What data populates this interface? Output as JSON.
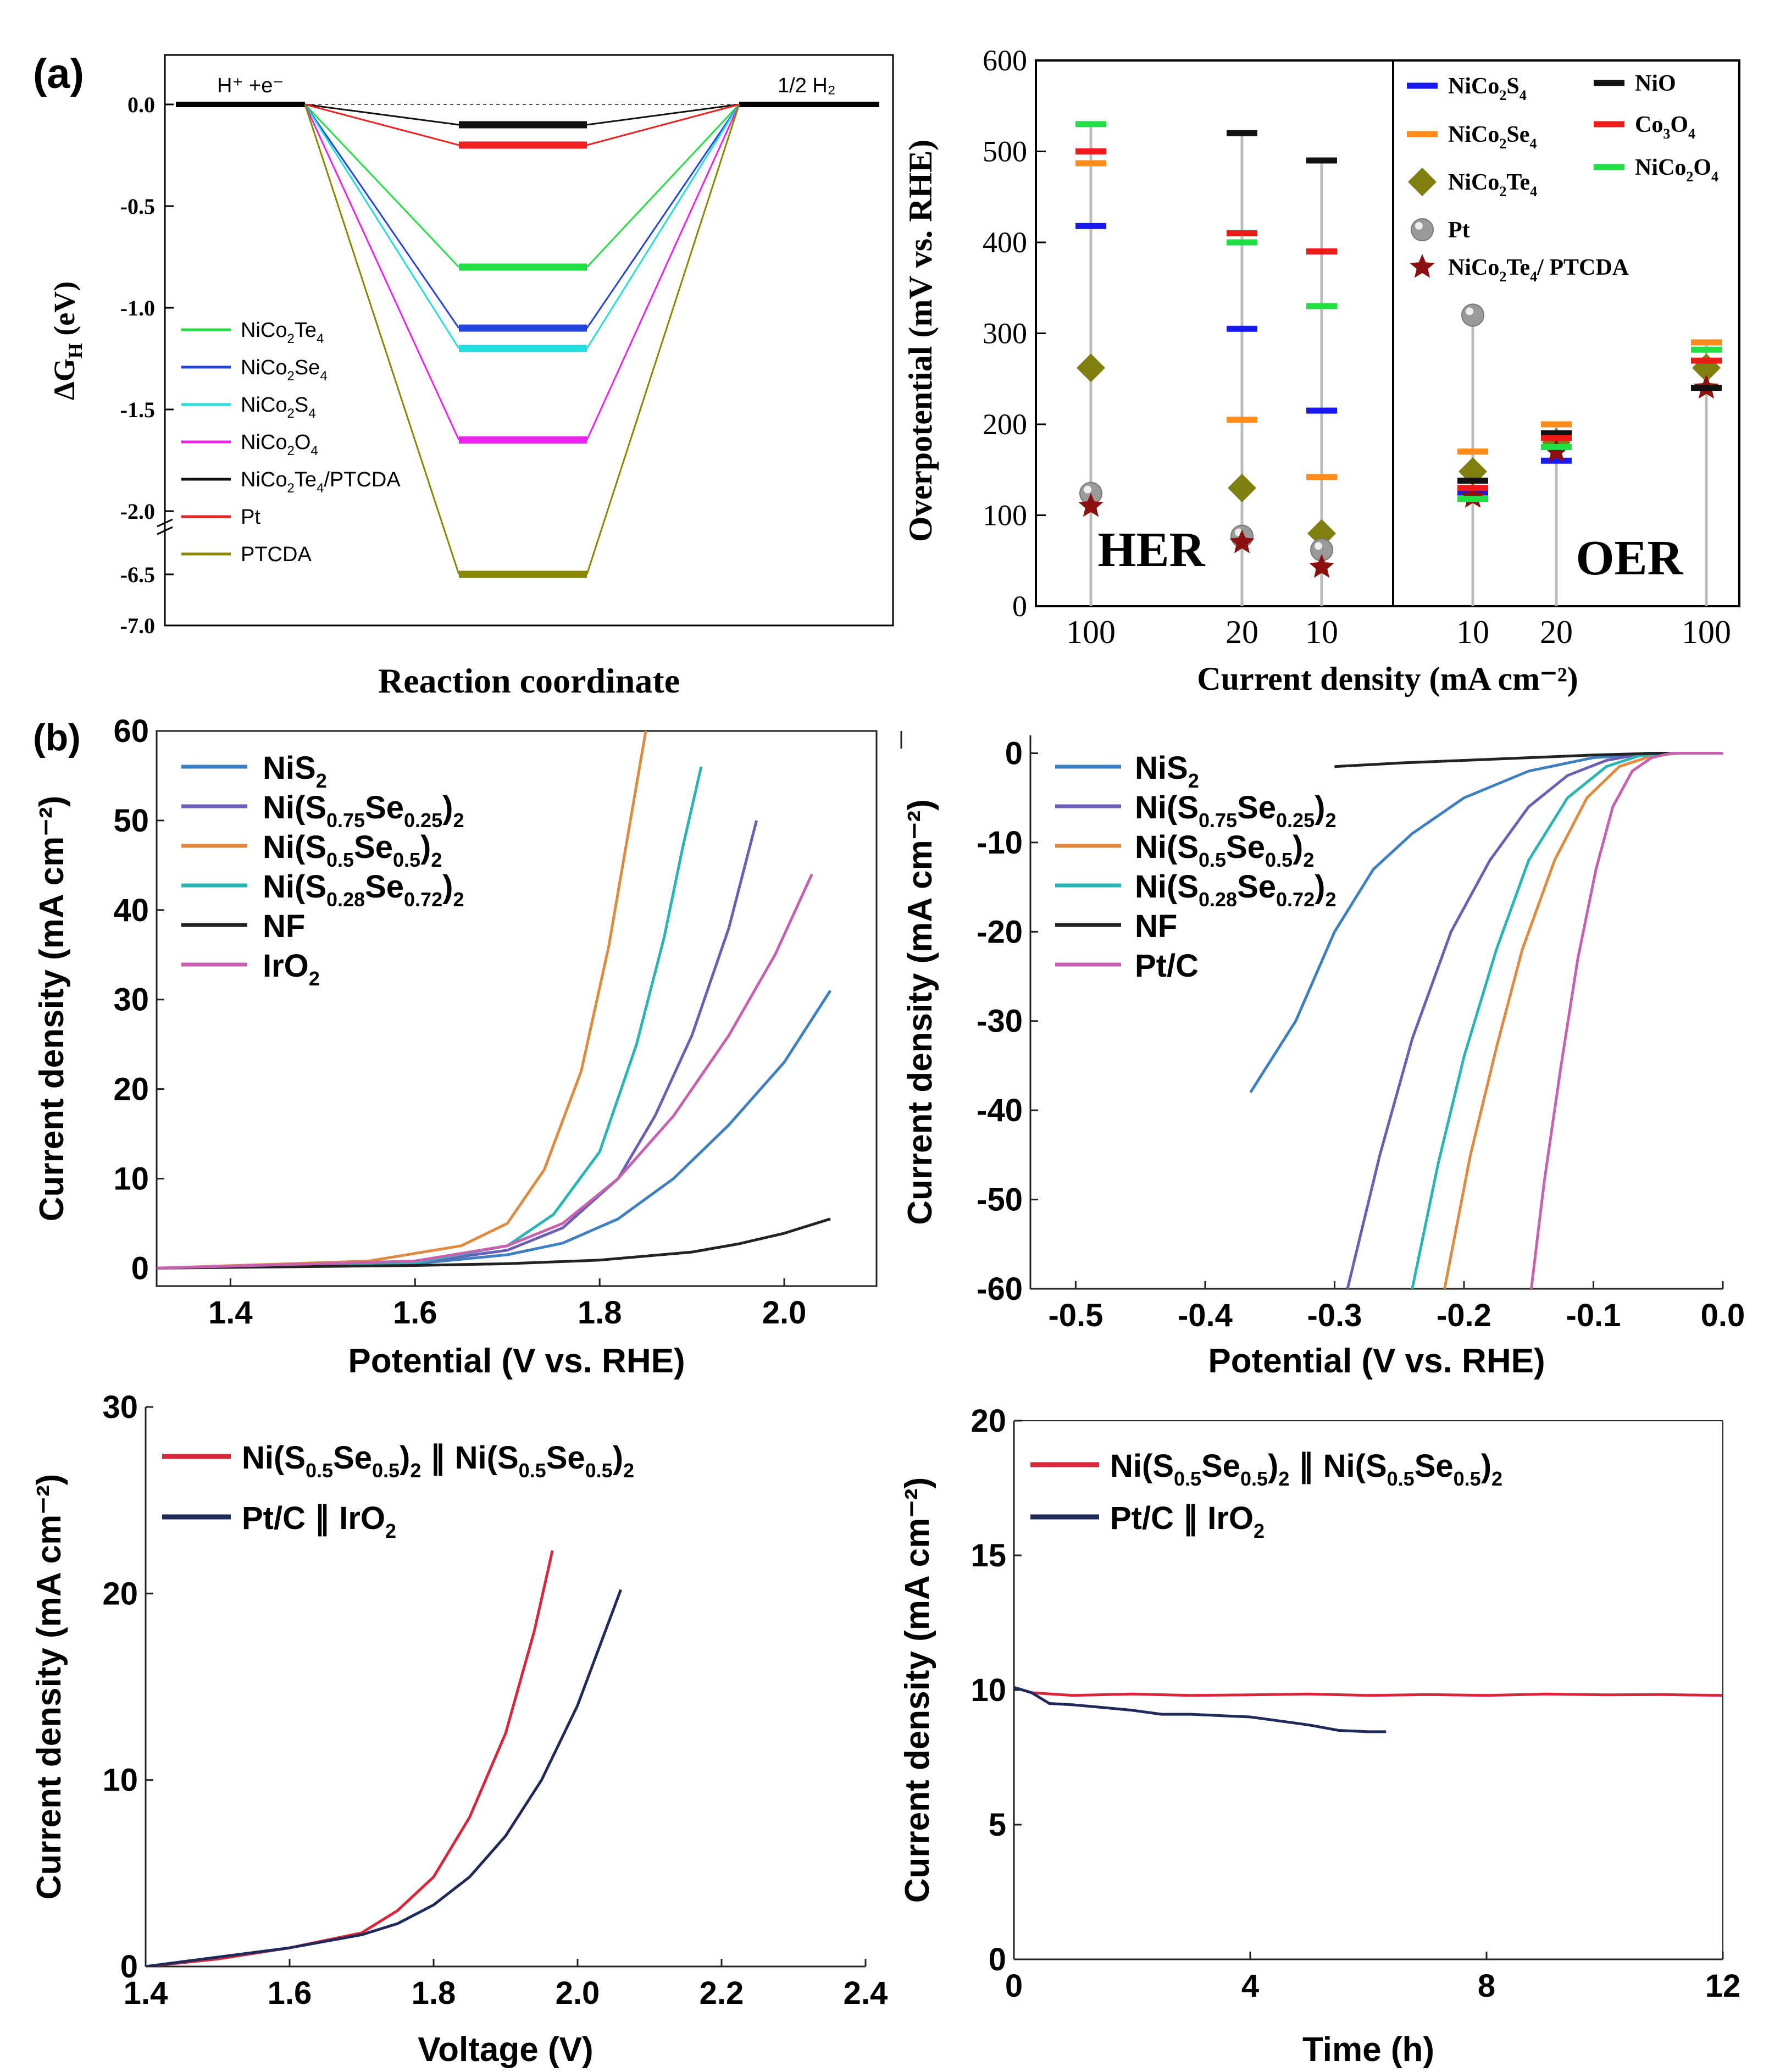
{
  "figure": {
    "panel_a_label": "(a)",
    "panel_b_label": "(b)"
  },
  "chart_data": [
    {
      "id": "energy",
      "type": "line",
      "title": "",
      "xlabel": "Reaction coordinate",
      "ylabel": "ΔG",
      "ylabel_sub": "H",
      "ylabel_unit": "(eV)",
      "start_label": "H⁺ +e⁻",
      "end_label": "1/2 H₂",
      "yticks": [
        "0.0",
        "-0.5",
        "-1.0",
        "-1.5",
        "-2.0",
        "-6.5",
        "-7.0"
      ],
      "series": [
        {
          "name": "NiCo₂Te₄",
          "dg": -0.8,
          "color": "#22dd44"
        },
        {
          "name": "NiCo₂Se₄",
          "dg": -1.1,
          "color": "#2244dd"
        },
        {
          "name": "NiCo₂S₄",
          "dg": -1.2,
          "color": "#22dddd"
        },
        {
          "name": "NiCo₂O₄",
          "dg": -1.65,
          "color": "#ee22ee"
        },
        {
          "name": "NiCo₂Te₄/PTCDA",
          "dg": -0.1,
          "color": "#111111"
        },
        {
          "name": "Pt",
          "dg": -0.2,
          "color": "#ee2222"
        },
        {
          "name": "PTCDA",
          "dg": -6.5,
          "color": "#888800"
        }
      ]
    },
    {
      "id": "overpotential",
      "type": "scatter",
      "ylabel": "Overpotential (mV vs. RHE)",
      "xlabel": "Current density (mA cm⁻²)",
      "ylim": [
        0,
        600
      ],
      "yticks": [
        "0",
        "100",
        "200",
        "300",
        "400",
        "500",
        "600"
      ],
      "her_label": "HER",
      "oer_label": "OER",
      "groups": [
        {
          "label": "100",
          "side": "HER"
        },
        {
          "label": "20",
          "side": "HER"
        },
        {
          "label": "10",
          "side": "HER"
        },
        {
          "label": "10",
          "side": "OER"
        },
        {
          "label": "20",
          "side": "OER"
        },
        {
          "label": "100",
          "side": "OER"
        }
      ],
      "series": [
        {
          "name": "NiCo₂S₄",
          "marker": "dash",
          "color": "#1a1aee",
          "values": [
            418,
            305,
            215,
            125,
            160,
            null
          ]
        },
        {
          "name": "NiCo₂Se₄",
          "marker": "dash",
          "color": "#ff8c1a",
          "values": [
            487,
            205,
            142,
            170,
            200,
            290
          ]
        },
        {
          "name": "NiCo₂Te₄",
          "marker": "diamond",
          "color": "#7f7f10",
          "values": [
            262,
            130,
            80,
            148,
            180,
            262
          ]
        },
        {
          "name": "Pt",
          "marker": "sphere",
          "color": "#999999",
          "values": [
            124,
            77,
            62,
            320,
            null,
            null
          ]
        },
        {
          "name": "NiCo₂Te₄/ PTCDA",
          "marker": "star",
          "color": "#8b1010",
          "values": [
            110,
            70,
            43,
            120,
            170,
            240
          ]
        },
        {
          "name": "NiO",
          "marker": "dash",
          "color": "#111111",
          "values": [
            null,
            520,
            490,
            138,
            190,
            240
          ]
        },
        {
          "name": "Co₃O₄",
          "marker": "dash",
          "color": "#ee1a1a",
          "values": [
            500,
            410,
            390,
            130,
            185,
            270
          ]
        },
        {
          "name": "NiCo₂O₄",
          "marker": "dash",
          "color": "#22dd44",
          "values": [
            530,
            400,
            330,
            118,
            175,
            282
          ]
        }
      ]
    },
    {
      "id": "oer_lsv",
      "type": "line",
      "xlabel": "Potential (V vs. RHE)",
      "ylabel": "Current density (mA cm⁻²)",
      "xlim": [
        1.32,
        2.1
      ],
      "ylim": [
        -2,
        60
      ],
      "xticks": [
        "1.4",
        "1.6",
        "1.8",
        "2.0"
      ],
      "yticks": [
        "0",
        "10",
        "20",
        "30",
        "40",
        "50",
        "60"
      ],
      "series": [
        {
          "name": "NiS₂",
          "color": "#3d7fc1",
          "x": [
            1.32,
            1.6,
            1.7,
            1.76,
            1.82,
            1.88,
            1.94,
            2.0,
            2.05
          ],
          "y": [
            0,
            0.5,
            1.5,
            2.8,
            5.5,
            10,
            16,
            23,
            31
          ]
        },
        {
          "name": "Ni(S0.75Se0.25)2",
          "name_main": "Ni(S",
          "sub1": "0.75",
          "mid": "Se",
          "sub2": "0.25",
          "tail": ")",
          "sub3": "2",
          "color": "#6a5fb5",
          "x": [
            1.32,
            1.6,
            1.7,
            1.76,
            1.82,
            1.86,
            1.9,
            1.94,
            1.97
          ],
          "y": [
            0,
            0.6,
            2,
            4.5,
            10,
            17,
            26,
            38,
            50
          ]
        },
        {
          "name": "Ni(S0.5Se0.5)2",
          "name_main": "Ni(S",
          "sub1": "0.5",
          "mid": "Se",
          "sub2": "0.5",
          "tail": ")",
          "sub3": "2",
          "color": "#e08a40",
          "x": [
            1.32,
            1.55,
            1.65,
            1.7,
            1.74,
            1.78,
            1.81,
            1.83,
            1.85
          ],
          "y": [
            0,
            0.8,
            2.5,
            5,
            11,
            22,
            36,
            48,
            60
          ]
        },
        {
          "name": "Ni(S0.28Se0.72)2",
          "name_main": "Ni(S",
          "sub1": "0.28",
          "mid": "Se",
          "sub2": "0.72",
          "tail": ")",
          "sub3": "2",
          "color": "#2ab5b5",
          "x": [
            1.32,
            1.6,
            1.7,
            1.75,
            1.8,
            1.84,
            1.87,
            1.89,
            1.91
          ],
          "y": [
            0,
            0.6,
            2.5,
            6,
            13,
            25,
            37,
            47,
            56
          ]
        },
        {
          "name": "NF",
          "color": "#222222",
          "x": [
            1.32,
            1.6,
            1.7,
            1.8,
            1.9,
            1.95,
            2.0,
            2.05
          ],
          "y": [
            0,
            0.3,
            0.5,
            0.9,
            1.8,
            2.7,
            3.9,
            5.5
          ]
        },
        {
          "name": "IrO₂",
          "color": "#c860b0",
          "x": [
            1.32,
            1.6,
            1.7,
            1.76,
            1.82,
            1.88,
            1.94,
            1.99,
            2.03
          ],
          "y": [
            0,
            0.8,
            2.5,
            5,
            10,
            17,
            26,
            35,
            44
          ]
        }
      ]
    },
    {
      "id": "her_lsv",
      "type": "line",
      "xlabel": "Potential (V vs. RHE)",
      "ylabel": "Current density (mA cm⁻²)",
      "xlim": [
        -0.535,
        0.0
      ],
      "ylim": [
        -60,
        2
      ],
      "xticks": [
        "-0.5",
        "-0.4",
        "-0.3",
        "-0.2",
        "-0.1",
        "0.0"
      ],
      "yticks": [
        "0",
        "-10",
        "-20",
        "-30",
        "-40",
        "-50",
        "-60"
      ],
      "series": [
        {
          "name": "NiS₂",
          "color": "#3d7fc1",
          "x": [
            -0.365,
            -0.33,
            -0.3,
            -0.27,
            -0.24,
            -0.2,
            -0.15,
            -0.1,
            -0.05,
            0.0
          ],
          "y": [
            -38,
            -30,
            -20,
            -13,
            -9,
            -5,
            -2,
            -0.5,
            0,
            0
          ]
        },
        {
          "name": "Ni(S0.75Se0.25)2",
          "name_main": "Ni(S",
          "sub1": "0.75",
          "mid": "Se",
          "sub2": "0.25",
          "tail": ")",
          "sub3": "2",
          "color": "#6a5fb5",
          "x": [
            -0.29,
            -0.265,
            -0.24,
            -0.21,
            -0.18,
            -0.15,
            -0.12,
            -0.09,
            -0.06,
            0.0
          ],
          "y": [
            -60,
            -45,
            -32,
            -20,
            -12,
            -6,
            -2.5,
            -0.8,
            0,
            0
          ]
        },
        {
          "name": "Ni(S0.5Se0.5)2",
          "name_main": "Ni(S",
          "sub1": "0.5",
          "mid": "Se",
          "sub2": "0.5",
          "tail": ")",
          "sub3": "2",
          "color": "#e08a40",
          "x": [
            -0.215,
            -0.195,
            -0.175,
            -0.155,
            -0.13,
            -0.105,
            -0.08,
            -0.055,
            -0.035,
            0.0
          ],
          "y": [
            -60,
            -45,
            -33,
            -22,
            -12,
            -5,
            -1.5,
            -0.3,
            0,
            0
          ]
        },
        {
          "name": "Ni(S0.28Se0.72)2",
          "name_main": "Ni(S",
          "sub1": "0.28",
          "mid": "Se",
          "sub2": "0.72",
          "tail": ")",
          "sub3": "2",
          "color": "#2ab5b5",
          "x": [
            -0.24,
            -0.22,
            -0.2,
            -0.175,
            -0.15,
            -0.12,
            -0.09,
            -0.065,
            -0.04,
            0.0
          ],
          "y": [
            -60,
            -46,
            -34,
            -22,
            -12,
            -5,
            -1.5,
            -0.3,
            0,
            0
          ]
        },
        {
          "name": "NF",
          "color": "#222222",
          "x": [
            -0.3,
            -0.25,
            -0.2,
            -0.15,
            -0.1,
            -0.05,
            0.0
          ],
          "y": [
            -1.5,
            -1.1,
            -0.8,
            -0.5,
            -0.2,
            0,
            0
          ]
        },
        {
          "name": "Pt/C",
          "color": "#c860b0",
          "x": [
            -0.148,
            -0.138,
            -0.125,
            -0.112,
            -0.098,
            -0.085,
            -0.07,
            -0.055,
            -0.04,
            0.0
          ],
          "y": [
            -60,
            -48,
            -35,
            -23,
            -13,
            -6,
            -2,
            -0.5,
            0,
            0
          ]
        }
      ]
    },
    {
      "id": "overall_lsv",
      "type": "line",
      "xlabel": "Voltage (V)",
      "ylabel": "Current density (mA cm⁻²)",
      "xlim": [
        1.4,
        2.4
      ],
      "ylim": [
        0,
        30
      ],
      "xticks": [
        "1.4",
        "1.6",
        "1.8",
        "2.0",
        "2.2",
        "2.4"
      ],
      "yticks": [
        "0",
        "10",
        "20",
        "30"
      ],
      "series": [
        {
          "name": "Ni(S0.5Se0.5)2 ∥ Ni(S0.5Se0.5)2",
          "color": "#d8263a",
          "x": [
            1.4,
            1.5,
            1.6,
            1.7,
            1.75,
            1.8,
            1.85,
            1.9,
            1.94,
            1.965
          ],
          "y": [
            0,
            0.4,
            1.0,
            1.8,
            3.0,
            4.8,
            8.0,
            12.5,
            18,
            22.3
          ]
        },
        {
          "name": "Pt/C ∥ IrO₂",
          "color": "#1f2a5a",
          "x": [
            1.4,
            1.5,
            1.6,
            1.7,
            1.75,
            1.8,
            1.85,
            1.9,
            1.95,
            2.0,
            2.06
          ],
          "y": [
            0,
            0.5,
            1.0,
            1.7,
            2.3,
            3.3,
            4.8,
            7.0,
            10,
            14,
            20.2
          ]
        }
      ],
      "legend": [
        {
          "text": [
            "Ni(S",
            "0.5",
            "Se",
            "0.5",
            ")",
            "2",
            " ∥ Ni(S",
            "0.5",
            "Se",
            "0.5",
            ")",
            "2"
          ]
        },
        {
          "text": [
            "Pt/C ∥ IrO",
            "2"
          ]
        }
      ]
    },
    {
      "id": "stability",
      "type": "line",
      "xlabel": "Time (h)",
      "ylabel": "Current density (mA cm⁻²)",
      "xlim": [
        0,
        12
      ],
      "ylim": [
        0,
        20
      ],
      "xticks": [
        "0",
        "4",
        "8",
        "12"
      ],
      "yticks": [
        "0",
        "5",
        "10",
        "15",
        "20"
      ],
      "series": [
        {
          "name": "Ni(S0.5Se0.5)2 ∥ Ni(S0.5Se0.5)2",
          "color": "#d8263a",
          "x": [
            0,
            0.3,
            1,
            2,
            3,
            4,
            5,
            6,
            7,
            8,
            9,
            10,
            11,
            12
          ],
          "y": [
            10.1,
            9.9,
            9.8,
            9.85,
            9.8,
            9.82,
            9.85,
            9.8,
            9.83,
            9.8,
            9.85,
            9.82,
            9.83,
            9.8
          ]
        },
        {
          "name": "Pt/C ∥ IrO₂",
          "color": "#1f2a5a",
          "x": [
            0,
            0.3,
            0.6,
            1,
            1.5,
            2,
            2.5,
            3,
            3.5,
            4,
            4.5,
            5,
            5.5,
            6,
            6.3
          ],
          "y": [
            10.1,
            9.9,
            9.5,
            9.45,
            9.35,
            9.25,
            9.1,
            9.1,
            9.05,
            9.0,
            8.85,
            8.7,
            8.5,
            8.45,
            8.45
          ]
        }
      ],
      "legend": [
        {
          "text": [
            "Ni(S",
            "0.5",
            "Se",
            "0.5",
            ")",
            "2",
            " ∥ Ni(S",
            "0.5",
            "Se",
            "0.5",
            ")",
            "2"
          ]
        },
        {
          "text": [
            "Pt/C ∥ IrO",
            "2"
          ]
        }
      ]
    }
  ]
}
